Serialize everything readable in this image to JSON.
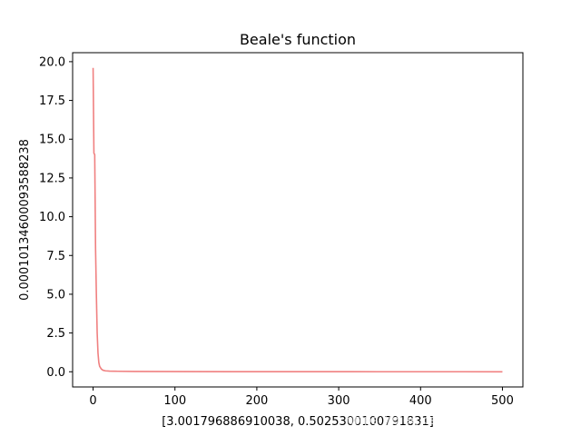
{
  "chart_data": {
    "type": "line",
    "title": "Beale's function",
    "xlabel": "[3.001796886910038, 0.5025300100791831]",
    "ylabel": "0.00010134600093588238",
    "xlim": [
      -25,
      525
    ],
    "ylim": [
      -0.98,
      20.58
    ],
    "xticks": [
      0,
      100,
      200,
      300,
      400,
      500
    ],
    "xtick_labels": [
      "0",
      "100",
      "200",
      "300",
      "400",
      "500"
    ],
    "yticks": [
      0.0,
      2.5,
      5.0,
      7.5,
      10.0,
      12.5,
      15.0,
      17.5,
      20.0
    ],
    "ytick_labels": [
      "0.0",
      "2.5",
      "5.0",
      "7.5",
      "10.0",
      "12.5",
      "15.0",
      "17.5",
      "20.0"
    ],
    "grid": false,
    "series": [
      {
        "color": "#f08080",
        "x": [
          0,
          1,
          2,
          3,
          4,
          5,
          6,
          7,
          8,
          10,
          12,
          15,
          20,
          30,
          50,
          100,
          200,
          300,
          350,
          400,
          450,
          500
        ],
        "y": [
          19.6,
          14.1,
          14.0,
          8.0,
          5.0,
          2.5,
          1.2,
          0.6,
          0.35,
          0.18,
          0.1,
          0.06,
          0.04,
          0.03,
          0.02,
          0.01,
          0.005,
          0.003,
          0.002,
          0.001,
          0.0005,
          0.0001
        ]
      }
    ]
  },
  "watermark": "https://blog.csdn.net/FemaleHacker"
}
